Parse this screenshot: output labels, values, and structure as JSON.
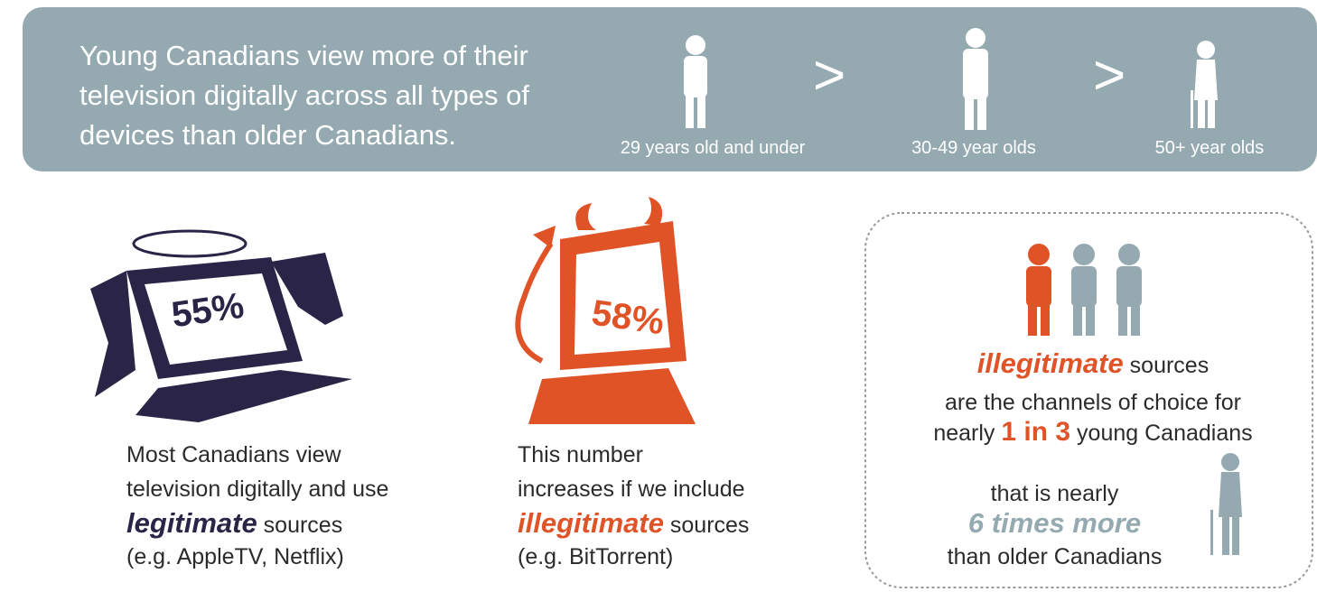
{
  "header": {
    "lines": [
      "Young Canadians view more of their",
      "television digitally across all types of",
      "devices than older Canadians."
    ],
    "groups": [
      "29 years old and under",
      "30-49 year olds",
      "50+ year olds"
    ],
    "comparators": [
      ">",
      ">"
    ]
  },
  "legitimate": {
    "percent": "55%",
    "lines": [
      "Most Canadians view",
      "television digitally and use"
    ],
    "emphasis": "legitimate",
    "after": "sources",
    "note": "(e.g. AppleTV, Netflix)"
  },
  "illegitimate": {
    "percent": "58%",
    "lines": [
      "This number",
      "increases if we include"
    ],
    "emphasis": "illegitimate",
    "after": "sources",
    "note": "(e.g. BitTorrent)"
  },
  "young": {
    "emphasis": "illegitimate",
    "after": "sources",
    "line2": "are the channels of choice for",
    "pre": "nearly",
    "ratio": "1 in 3",
    "post": "young Canadians",
    "compare1": "that is nearly",
    "compare2": "6 times more",
    "compare3": "than older Canadians"
  }
}
